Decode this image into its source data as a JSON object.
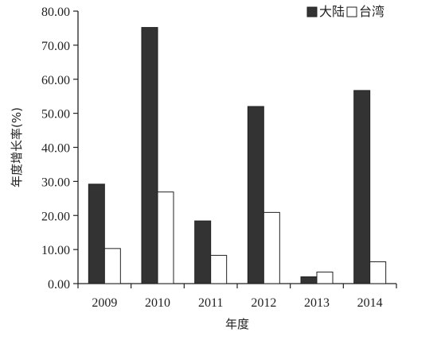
{
  "chart_data": {
    "type": "bar",
    "categories": [
      "2009",
      "2010",
      "2011",
      "2012",
      "2013",
      "2014"
    ],
    "series": [
      {
        "name": "大陆",
        "values": [
          29.2,
          75.2,
          18.4,
          52.0,
          2.0,
          56.7
        ],
        "color": "#333333"
      },
      {
        "name": "台湾",
        "values": [
          10.3,
          26.9,
          8.3,
          20.9,
          3.4,
          6.4
        ],
        "color": "#ffffff"
      }
    ],
    "xlabel": "年度",
    "ylabel": "年度增长率(%)",
    "ylim": [
      0,
      80
    ],
    "yticks": [
      0,
      10,
      20,
      30,
      40,
      50,
      60,
      70,
      80
    ],
    "ytick_labels": [
      "0.00",
      "10.00",
      "20.00",
      "30.00",
      "40.00",
      "50.00",
      "60.00",
      "70.00",
      "80.00"
    ],
    "legend_position": "top-right",
    "grid": false
  }
}
